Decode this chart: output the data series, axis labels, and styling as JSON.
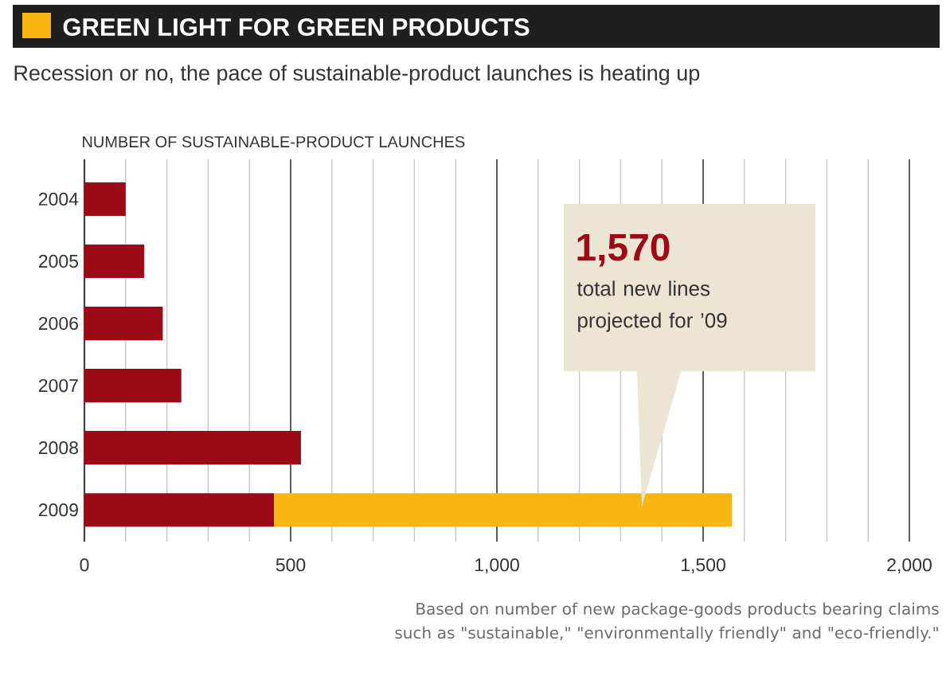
{
  "chart_data": {
    "type": "bar",
    "orientation": "horizontal",
    "stacked": true,
    "title": "GREEN LIGHT FOR GREEN PRODUCTS",
    "subtitle": "Recession or no, the pace of sustainable-product launches is heating up",
    "xlabel": "NUMBER OF SUSTAINABLE-PRODUCT LAUNCHES",
    "categories": [
      "2004",
      "2005",
      "2006",
      "2007",
      "2008",
      "2009"
    ],
    "series": [
      {
        "color": "#9b0a16",
        "values": [
          100,
          145,
          190,
          235,
          525,
          460
        ]
      },
      {
        "color": "#f8b516",
        "values": [
          null,
          null,
          null,
          null,
          null,
          1110
        ]
      }
    ],
    "xlim": [
      0,
      2000
    ],
    "xticks": [
      0,
      {
        "value": 100,
        "label": null
      },
      {
        "value": 200,
        "label": null
      },
      {
        "value": 300,
        "label": null
      },
      {
        "value": 400,
        "label": null
      },
      500,
      {
        "value": 600,
        "label": null
      },
      {
        "value": 700,
        "label": null
      },
      {
        "value": 800,
        "label": null
      },
      {
        "value": 900,
        "label": null
      },
      {
        "value": 1000,
        "label": "1,000"
      },
      {
        "value": 1100,
        "label": null
      },
      {
        "value": 1200,
        "label": null
      },
      {
        "value": 1300,
        "label": null
      },
      {
        "value": 1400,
        "label": null
      },
      {
        "value": 1500,
        "label": "1,500"
      },
      {
        "value": 1600,
        "label": null
      },
      {
        "value": 1700,
        "label": null
      },
      {
        "value": 1800,
        "label": null
      },
      {
        "value": 1900,
        "label": null
      },
      {
        "value": 2000,
        "label": "2,000"
      }
    ],
    "grid": "x",
    "annotations": [
      "1,570",
      "total new lines projected for ’09",
      "Based on number of new package-goods products bearing claims such as \"sustainable,\" \"environmentally friendly\" and \"eco-friendly.\""
    ]
  }
}
